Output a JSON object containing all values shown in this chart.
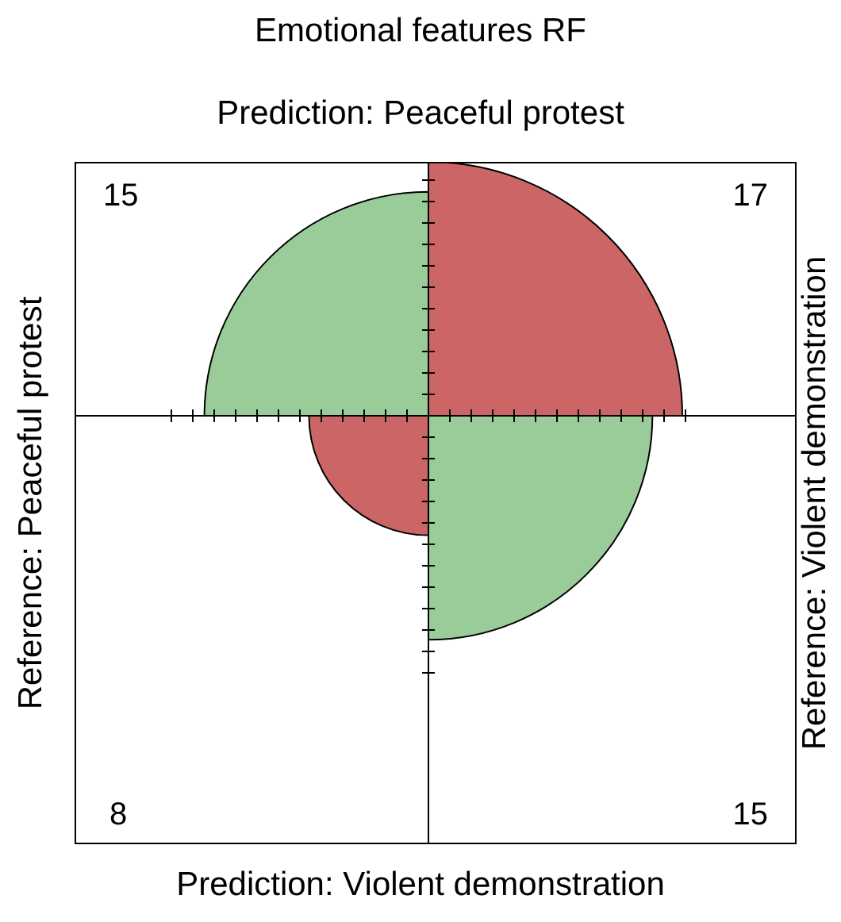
{
  "chart_data": {
    "type": "other",
    "title": "Emotional features RF",
    "x2label": "Prediction: Peaceful protest",
    "xlabel": "Prediction: Violent demonstration",
    "ylabel": "Reference: Peaceful protest",
    "y2label": "Reference: Violent demonstration",
    "categories": [
      null,
      null,
      null,
      null
    ],
    "values": [
      15,
      17,
      8,
      15
    ],
    "colors": [
      "#99cc99",
      "#cc6666",
      "#cc6666",
      "#99cc99"
    ],
    "data_labels": true
  }
}
